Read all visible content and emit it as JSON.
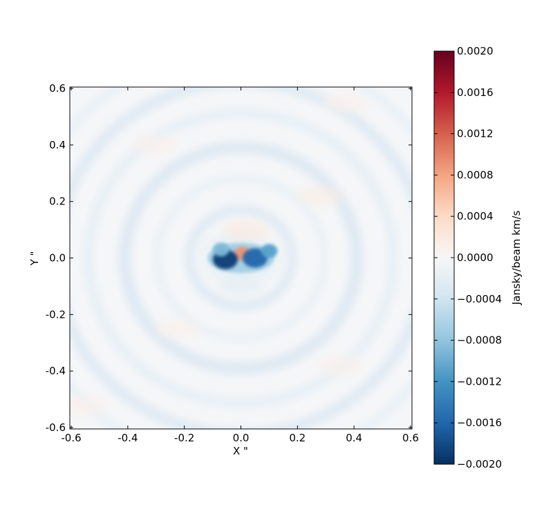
{
  "chart_data": {
    "type": "heatmap",
    "xlabel": "X \"",
    "ylabel": "Y \"",
    "xlim": [
      -0.605,
      0.605
    ],
    "ylim": [
      -0.605,
      0.605
    ],
    "x_ticks": [
      -0.6,
      -0.4,
      -0.2,
      0.0,
      0.2,
      0.4,
      0.6
    ],
    "x_tick_labels": [
      "-0.6",
      "-0.4",
      "-0.2",
      "0.0",
      "0.2",
      "0.4",
      "0.6"
    ],
    "y_ticks": [
      -0.6,
      -0.4,
      -0.2,
      0.0,
      0.2,
      0.4,
      0.6
    ],
    "y_tick_labels": [
      "-0.6",
      "-0.4",
      "-0.2",
      "0.0",
      "0.2",
      "0.4",
      "0.6"
    ],
    "colormap": "RdBu_r",
    "colorbar": {
      "label": "Jansky/beam km/s",
      "vmin": -0.002,
      "vmax": 0.002,
      "ticks": [
        -0.002,
        -0.0016,
        -0.0012,
        -0.0008,
        -0.0004,
        0.0,
        0.0004,
        0.0008,
        0.0012,
        0.0016,
        0.002
      ],
      "tick_labels": [
        "−0.0020",
        "−0.0016",
        "−0.0012",
        "−0.0008",
        "−0.0004",
        "0.0000",
        "0.0004",
        "0.0008",
        "0.0012",
        "0.0016",
        "0.0020"
      ],
      "stops": [
        "#053061",
        "#2166ac",
        "#4393c3",
        "#92c5de",
        "#d1e5f0",
        "#f7f7f7",
        "#fddbc7",
        "#f4a582",
        "#d6604d",
        "#b2182b",
        "#67001f"
      ]
    },
    "features": [
      {
        "x": 0.0,
        "y": 0.0,
        "value": -0.0007
      },
      {
        "x": 0.005,
        "y": 0.015,
        "value": 0.0009
      },
      {
        "x": -0.055,
        "y": -0.005,
        "value": -0.0019
      },
      {
        "x": 0.05,
        "y": 0.0,
        "value": -0.0016
      },
      {
        "x": 0.1,
        "y": 0.025,
        "value": -0.0011
      },
      {
        "x": -0.07,
        "y": 0.03,
        "value": -0.0009
      },
      {
        "x": 0.0,
        "y": -0.1,
        "value": -0.0002
      },
      {
        "x": 0.02,
        "y": 0.1,
        "value": 0.0002
      },
      {
        "x": 0.28,
        "y": 0.22,
        "value": 0.00015
      },
      {
        "x": -0.3,
        "y": 0.4,
        "value": 0.0001
      },
      {
        "x": 0.37,
        "y": 0.55,
        "value": 0.0001
      },
      {
        "x": -0.22,
        "y": -0.25,
        "value": 0.0001
      },
      {
        "x": -0.55,
        "y": -0.52,
        "value": 0.0001
      },
      {
        "x": 0.35,
        "y": -0.38,
        "value": 0.0001
      }
    ]
  }
}
